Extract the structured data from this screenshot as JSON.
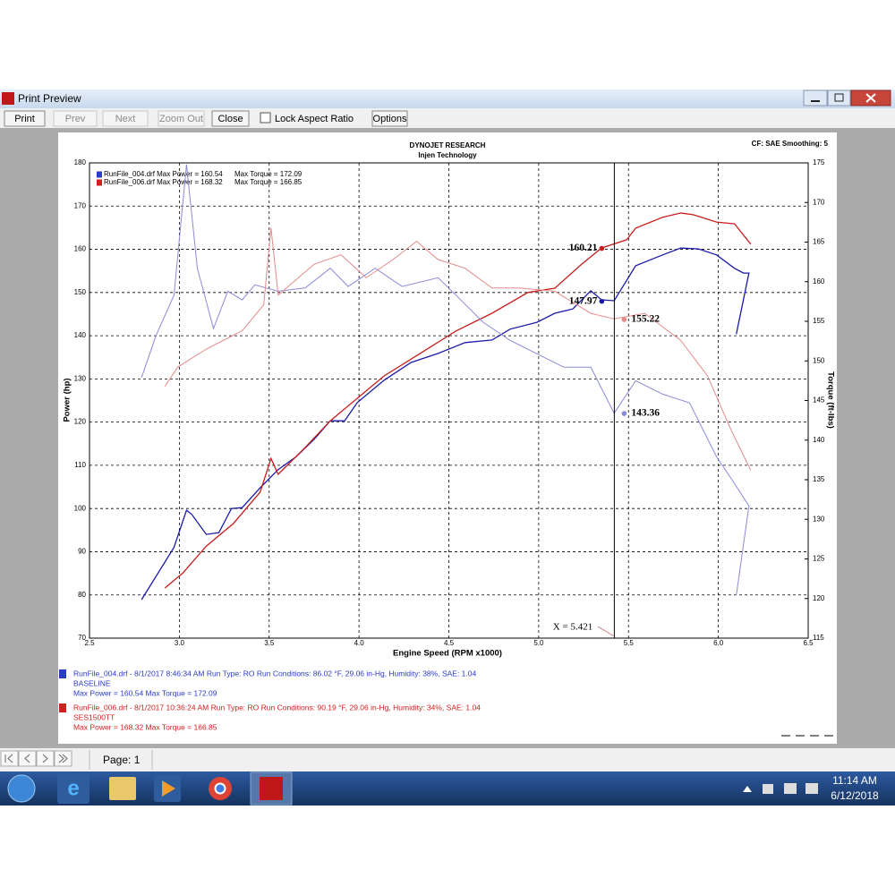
{
  "window": {
    "title": "Print Preview",
    "buttons": [
      "Print",
      "Prev",
      "Next",
      "Zoom Out",
      "Close"
    ],
    "checkbox": "Lock Aspect Ratio",
    "options": "Options"
  },
  "report": {
    "header": "DYNOJET RESEARCH",
    "subheader": "Injen Technology",
    "settings": "CF: SAE  Smoothing: 5",
    "runs": [
      {
        "color": "#2b3cc8",
        "line1": "RunFile_004.drf - 8/1/2017 8:46:34 AM  Run Type: RO  Run Conditions: 86.02 °F, 29.06 in-Hg,  Humidity:  38%, SAE: 1.04",
        "line2": "BASELINE",
        "line3": "Max Power = 160.54  Max Torque = 172.09"
      },
      {
        "color": "#d02020",
        "line1": "RunFile_006.drf - 8/1/2017 10:36:24 AM  Run Type: RO  Run Conditions: 90.19 °F, 29.06 in-Hg,  Humidity:  34%, SAE: 1.04",
        "line2": "SES1500TT",
        "line3": "Max Power = 168.32  Max Torque = 166.85"
      }
    ]
  },
  "chart_data": {
    "type": "line",
    "x_label": "Engine Speed (RPM x1000)",
    "y_label": "Power (hp)",
    "y2_label": "Torque (ft-lbs)",
    "xlim": [
      2.5,
      6.5
    ],
    "ylim": [
      70,
      180
    ],
    "y2lim": [
      115,
      175
    ],
    "xticks": [
      2.5,
      {
        "value": 3,
        "label": "3.0"
      },
      3.5,
      {
        "value": 4,
        "label": "4.0"
      },
      4.5,
      {
        "value": 5,
        "label": "5.0"
      },
      5.5,
      {
        "value": 6,
        "label": "6.0"
      },
      6.5
    ],
    "yticks": [
      70,
      80,
      90,
      100,
      110,
      120,
      130,
      140,
      150,
      160,
      170,
      180
    ],
    "y2ticks": [
      115,
      120,
      125,
      130,
      135,
      140,
      145,
      150,
      155,
      160,
      165,
      170,
      175
    ],
    "grid": true,
    "legend": [
      {
        "color": "#2b3cc8",
        "text": "RunFile_004.drf Max Power = 160.54",
        "torque": "Max Torque = 172.09"
      },
      {
        "color": "#d02020",
        "text": "RunFile_006.drf Max Power = 168.32",
        "torque": "Max Torque = 166.85"
      }
    ],
    "cursor": {
      "value": 5.421,
      "label": "X = 5.421"
    },
    "series": [
      {
        "color": "#1a1aa8",
        "cursor_value": 147.97,
        "x": [
          2.79,
          2.97,
          3.04,
          3.07,
          3.15,
          3.22,
          3.29,
          3.35,
          3.45,
          3.55,
          3.65,
          3.75,
          3.84,
          3.92,
          3.99,
          4.14,
          4.29,
          4.44,
          4.59,
          4.74,
          4.84,
          4.99,
          5.09,
          5.19,
          5.29,
          5.35,
          5.42,
          5.54,
          5.69,
          5.79,
          5.89,
          5.99,
          6.09,
          6.14,
          6.17,
          6.1
        ],
        "values": [
          78.9,
          91,
          99.6,
          98.6,
          94,
          94.4,
          100,
          100.2,
          104.8,
          109,
          112,
          116,
          120.3,
          120.3,
          124.5,
          129.7,
          133.8,
          135.9,
          138.4,
          139,
          141.5,
          143.1,
          145.2,
          146.2,
          150.4,
          148.3,
          148.1,
          156.2,
          158.7,
          160.3,
          160.1,
          158.7,
          155.6,
          154.5,
          154.5,
          140.4
        ]
      },
      {
        "color": "#c81e1e",
        "cursor_value": 160.21,
        "x": [
          2.92,
          3.02,
          3.15,
          3.3,
          3.45,
          3.51,
          3.55,
          3.7,
          3.84,
          3.99,
          4.14,
          4.34,
          4.54,
          4.74,
          4.94,
          5.09,
          5.24,
          5.35,
          5.49,
          5.54,
          5.69,
          5.79,
          5.86,
          5.99,
          6.09,
          6.18
        ],
        "values": [
          81.6,
          85.1,
          91.3,
          96.5,
          103.8,
          111.6,
          107.9,
          114.1,
          120.3,
          125.5,
          130.7,
          135.9,
          141.1,
          145.2,
          150,
          151,
          156.6,
          160.3,
          162.2,
          164.9,
          167.4,
          168.4,
          168,
          166.3,
          165.9,
          161.2
        ]
      },
      {
        "color": "#8a8ad8",
        "axis": "y2",
        "cursor_value": 143.36,
        "x": [
          2.79,
          2.87,
          2.97,
          3.04,
          3.1,
          3.19,
          3.27,
          3.35,
          3.42,
          3.55,
          3.7,
          3.84,
          3.94,
          4.09,
          4.24,
          4.44,
          4.54,
          4.69,
          4.84,
          4.99,
          5.14,
          5.29,
          5.42,
          5.54,
          5.69,
          5.84,
          5.99,
          6.09,
          6.17,
          6.1
        ],
        "values": [
          147.9,
          153.2,
          158.3,
          174.8,
          161.7,
          154.1,
          158.8,
          157.7,
          159.6,
          158.8,
          159.2,
          161.7,
          159.4,
          161.7,
          159.4,
          160.5,
          158.3,
          154.9,
          152.6,
          150.9,
          149.2,
          149.2,
          143.4,
          147.5,
          145.8,
          144.7,
          137.9,
          134.5,
          131.7,
          120.4
        ]
      },
      {
        "color": "#e48a8a",
        "axis": "y2",
        "cursor_value": 155.22,
        "x": [
          2.92,
          2.99,
          3.15,
          3.35,
          3.47,
          3.51,
          3.55,
          3.75,
          3.9,
          4.04,
          4.19,
          4.32,
          4.44,
          4.59,
          4.74,
          4.89,
          5.09,
          5.29,
          5.42,
          5.59,
          5.79,
          5.94,
          6.07,
          6.18
        ],
        "values": [
          146.8,
          149.2,
          151.5,
          153.8,
          157.1,
          166.8,
          158.3,
          162.2,
          163.4,
          160.5,
          162.8,
          165.1,
          162.8,
          161.7,
          159.2,
          159.2,
          158.8,
          156,
          155.3,
          156,
          152.6,
          148.1,
          141.3,
          136.2
        ]
      }
    ]
  },
  "status_bar": {
    "page": "Page: 1"
  },
  "taskbar": {
    "time": "11:14 AM",
    "date": "6/12/2018"
  }
}
